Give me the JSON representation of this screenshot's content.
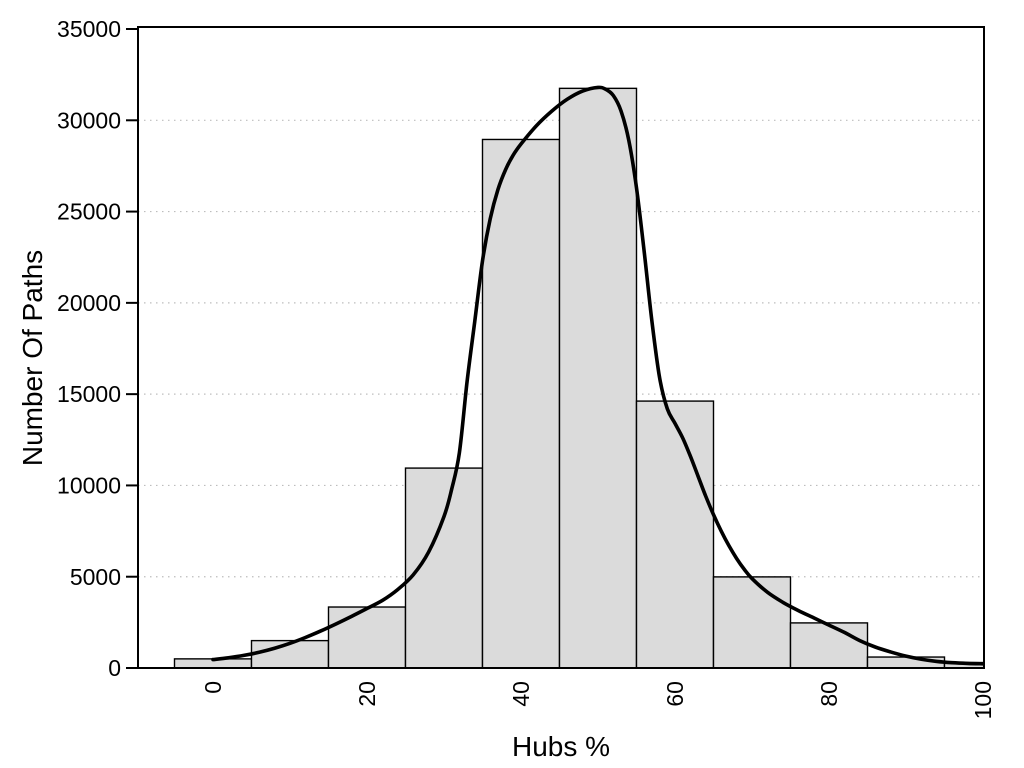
{
  "chart_data": {
    "type": "bar",
    "subtype": "histogram-with-density-curve",
    "title": "",
    "xlabel": "Hubs %",
    "ylabel": "Number Of Paths",
    "x_ticks": [
      "0",
      "20",
      "40",
      "60",
      "80",
      "100"
    ],
    "x_tick_values": [
      0,
      20,
      40,
      60,
      80,
      100
    ],
    "y_ticks": [
      "0",
      "5000",
      "10000",
      "15000",
      "20000",
      "25000",
      "30000",
      "35000"
    ],
    "y_tick_values": [
      0,
      5000,
      10000,
      15000,
      20000,
      25000,
      30000,
      35000
    ],
    "xlim": [
      -9.74,
      100.13
    ],
    "ylim": [
      0,
      35110
    ],
    "grid": "horizontal-dotted",
    "legend": "none",
    "x_tick_label_rotation_deg": -90,
    "bars": [
      {
        "from": -5,
        "to": 5,
        "count": 500
      },
      {
        "from": 5,
        "to": 15,
        "count": 1500
      },
      {
        "from": 15,
        "to": 25,
        "count": 3340
      },
      {
        "from": 25,
        "to": 35,
        "count": 10950
      },
      {
        "from": 35,
        "to": 45,
        "count": 28950
      },
      {
        "from": 45,
        "to": 55,
        "count": 31750
      },
      {
        "from": 55,
        "to": 65,
        "count": 14620
      },
      {
        "from": 65,
        "to": 75,
        "count": 4990
      },
      {
        "from": 75,
        "to": 85,
        "count": 2470
      },
      {
        "from": 85,
        "to": 95,
        "count": 600
      },
      {
        "from": 95,
        "to": 105,
        "count": 300
      }
    ],
    "density_curve": {
      "x": [
        0,
        2,
        4,
        6,
        8,
        10,
        12,
        14,
        16,
        18,
        20,
        22,
        24,
        26,
        28,
        30,
        31,
        32,
        33,
        34,
        35,
        36,
        37,
        38,
        39,
        40,
        42,
        44,
        46,
        48,
        50,
        51,
        52,
        53,
        54,
        55,
        56,
        57,
        58,
        59,
        60,
        61,
        62,
        63,
        64,
        65,
        66,
        67,
        68,
        69,
        70,
        72,
        74,
        76,
        78,
        80,
        82,
        84,
        86,
        88,
        90,
        92,
        94,
        96,
        98,
        100
      ],
      "y": [
        460,
        560,
        690,
        860,
        1080,
        1350,
        1670,
        2030,
        2420,
        2830,
        3260,
        3700,
        4300,
        5100,
        6350,
        8300,
        9800,
        11800,
        15700,
        19000,
        22300,
        24600,
        26200,
        27300,
        28100,
        28700,
        29700,
        30500,
        31150,
        31600,
        31800,
        31700,
        31350,
        30500,
        28900,
        26300,
        22800,
        19000,
        15900,
        14200,
        13400,
        12600,
        11600,
        10500,
        9400,
        8400,
        7500,
        6700,
        6000,
        5400,
        4900,
        4150,
        3600,
        3150,
        2750,
        2350,
        1950,
        1500,
        1150,
        880,
        650,
        480,
        360,
        290,
        250,
        230
      ]
    }
  },
  "style": {
    "bar_fill": "#dbdbdb",
    "bar_border": "#000000",
    "curve_color": "#000000",
    "grid_color": "#bdbdbd",
    "axis_color": "#000000",
    "text_color": "#000000",
    "background": "#ffffff"
  }
}
